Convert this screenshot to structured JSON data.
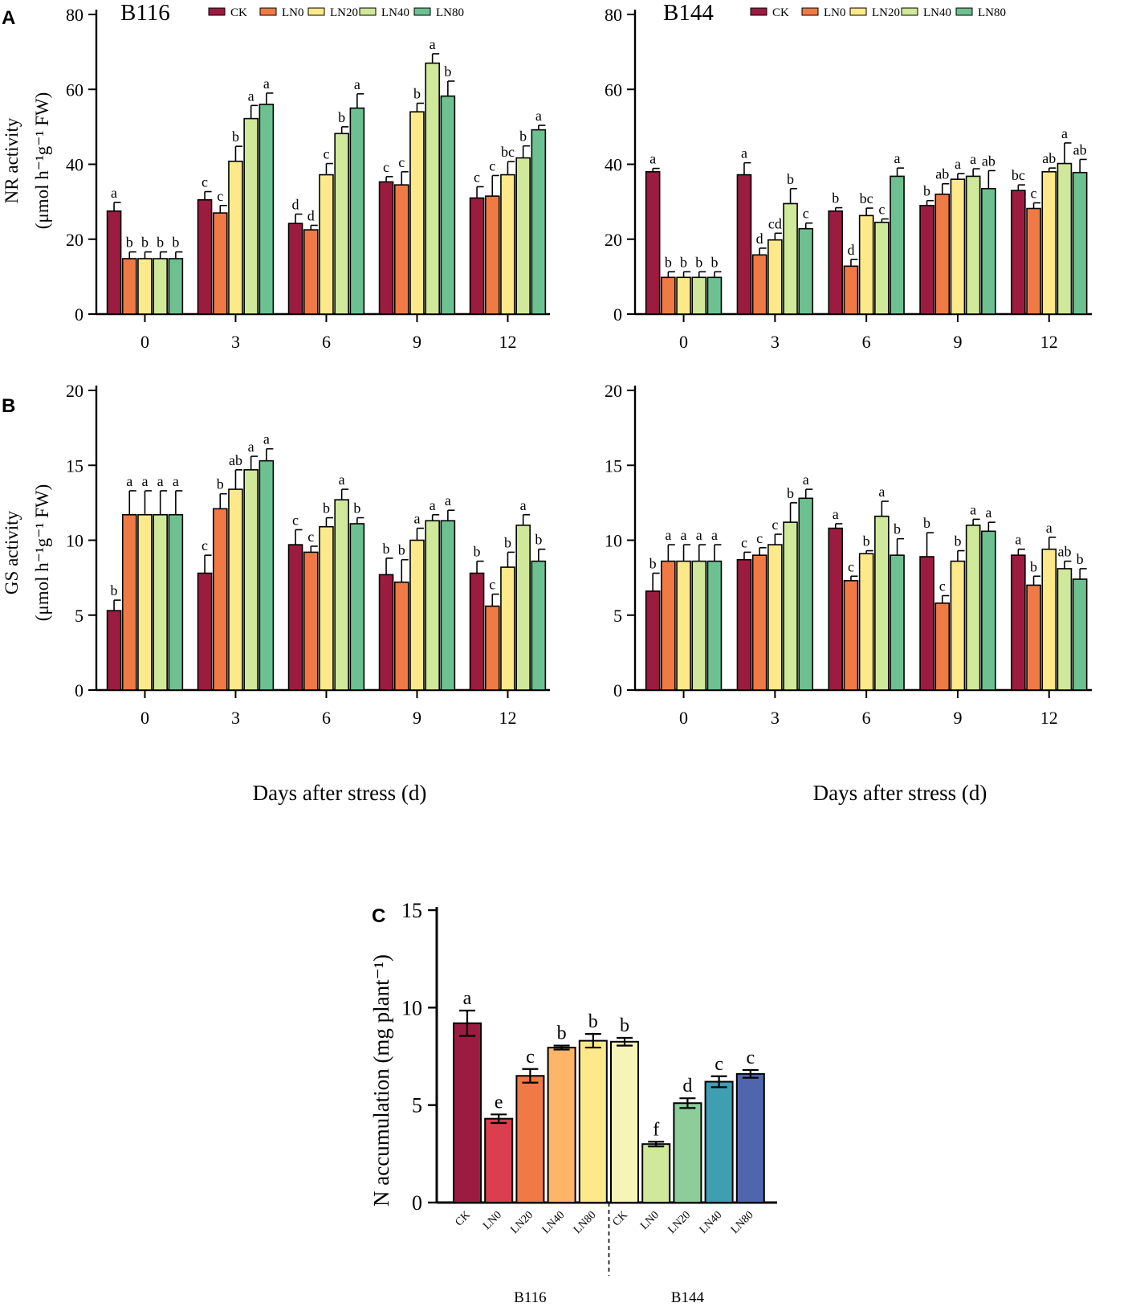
{
  "colors": {
    "CK": "#9b1c40",
    "LN0": "#f07a45",
    "LN20": "#fde98a",
    "LN40": "#cfe89a",
    "LN80": "#6dc190"
  },
  "panelA": {
    "letter": "A",
    "ylabel_line1": "NR activity",
    "ylabel_line2": "(μmol h⁻¹g⁻¹ FW)",
    "ylim": [
      0,
      80
    ],
    "yticks": [
      0,
      20,
      40,
      60,
      80
    ]
  },
  "panelB": {
    "letter": "B",
    "ylabel_line1": "GS activity",
    "ylabel_line2": "(μmol h⁻¹g⁻¹ FW)",
    "ylim": [
      0,
      20
    ],
    "yticks": [
      0,
      5,
      10,
      15,
      20
    ]
  },
  "xlabel": "Days after stress (d)",
  "panelC": {
    "letter": "C",
    "ylabel": "N accumulation (mg plant⁻¹)"
  },
  "chart_data": [
    {
      "id": "nr_b116",
      "type": "bar",
      "title": "B116",
      "xlabel": "",
      "ylabel": "NR activity (μmol h⁻¹g⁻¹ FW)",
      "ylim": [
        0,
        80
      ],
      "yticks": [
        0,
        20,
        40,
        60,
        80
      ],
      "categories": [
        "0",
        "3",
        "6",
        "9",
        "12"
      ],
      "legend": [
        "CK",
        "LN0",
        "LN20",
        "LN40",
        "LN80"
      ],
      "series": [
        {
          "name": "CK",
          "values": [
            27.5,
            30.5,
            24.2,
            35.3,
            31.0
          ],
          "errors": [
            2.3,
            2.2,
            2.5,
            1.4,
            3.0
          ],
          "letters": [
            "a",
            "c",
            "d",
            "c",
            "c"
          ]
        },
        {
          "name": "LN0",
          "values": [
            14.8,
            27.0,
            22.5,
            34.5,
            31.5
          ],
          "errors": [
            1.8,
            2.0,
            1.2,
            3.5,
            5.5
          ],
          "letters": [
            "b",
            "c",
            "d",
            "c",
            "c"
          ]
        },
        {
          "name": "LN20",
          "values": [
            14.8,
            40.8,
            37.2,
            54.0,
            37.2
          ],
          "errors": [
            1.8,
            4.0,
            3.0,
            2.3,
            3.5
          ],
          "letters": [
            "b",
            "b",
            "c",
            "b",
            "bc"
          ]
        },
        {
          "name": "LN40",
          "values": [
            14.8,
            52.2,
            48.2,
            67.0,
            41.7
          ],
          "errors": [
            1.8,
            3.5,
            1.8,
            2.5,
            3.2
          ],
          "letters": [
            "b",
            "a",
            "b",
            "a",
            "b"
          ]
        },
        {
          "name": "LN80",
          "values": [
            14.8,
            56.0,
            55.0,
            58.2,
            49.2
          ],
          "errors": [
            1.8,
            3.0,
            3.8,
            4.0,
            1.2
          ],
          "letters": [
            "b",
            "a",
            "a",
            "b",
            "a"
          ]
        }
      ]
    },
    {
      "id": "nr_b144",
      "type": "bar",
      "title": "B144",
      "xlabel": "",
      "ylabel": "",
      "ylim": [
        0,
        80
      ],
      "yticks": [
        0,
        20,
        40,
        60,
        80
      ],
      "categories": [
        "0",
        "3",
        "6",
        "9",
        "12"
      ],
      "legend": [
        "CK",
        "LN0",
        "LN20",
        "LN40",
        "LN80"
      ],
      "series": [
        {
          "name": "CK",
          "values": [
            38.0,
            37.2,
            27.5,
            29.0,
            33.0
          ],
          "errors": [
            0.9,
            3.2,
            0.9,
            1.3,
            1.5
          ],
          "letters": [
            "a",
            "a",
            "b",
            "b",
            "bc"
          ]
        },
        {
          "name": "LN0",
          "values": [
            9.8,
            15.8,
            12.8,
            32.0,
            28.2
          ],
          "errors": [
            1.5,
            1.8,
            1.8,
            2.8,
            1.5
          ],
          "letters": [
            "b",
            "d",
            "d",
            "ab",
            "c"
          ]
        },
        {
          "name": "LN20",
          "values": [
            9.8,
            19.8,
            26.3,
            36.0,
            38.0
          ],
          "errors": [
            1.5,
            1.8,
            2.0,
            1.5,
            1.0
          ],
          "letters": [
            "b",
            "cd",
            "bc",
            "a",
            "ab"
          ]
        },
        {
          "name": "LN40",
          "values": [
            9.8,
            29.5,
            24.5,
            36.8,
            40.2
          ],
          "errors": [
            1.5,
            4.0,
            0.9,
            2.0,
            5.5
          ],
          "letters": [
            "b",
            "b",
            "c",
            "a",
            "a"
          ]
        },
        {
          "name": "LN80",
          "values": [
            9.8,
            22.8,
            36.8,
            33.5,
            37.8
          ],
          "errors": [
            1.5,
            1.5,
            2.2,
            4.8,
            3.5
          ],
          "letters": [
            "b",
            "c",
            "a",
            "ab",
            "ab"
          ]
        }
      ]
    },
    {
      "id": "gs_b116",
      "type": "bar",
      "title": "",
      "xlabel": "Days after stress (d)",
      "ylabel": "GS activity (μmol h⁻¹g⁻¹ FW)",
      "ylim": [
        0,
        20
      ],
      "yticks": [
        0,
        5,
        10,
        15,
        20
      ],
      "categories": [
        "0",
        "3",
        "6",
        "9",
        "12"
      ],
      "series": [
        {
          "name": "CK",
          "values": [
            5.3,
            7.8,
            9.7,
            7.7,
            7.8
          ],
          "errors": [
            0.7,
            1.2,
            1.0,
            1.1,
            0.8
          ],
          "letters": [
            "b",
            "c",
            "c",
            "b",
            "b"
          ]
        },
        {
          "name": "LN0",
          "values": [
            11.7,
            12.1,
            9.2,
            7.2,
            5.6
          ],
          "errors": [
            1.6,
            1.0,
            0.4,
            1.5,
            0.8
          ],
          "letters": [
            "a",
            "b",
            "c",
            "b",
            "c"
          ]
        },
        {
          "name": "LN20",
          "values": [
            11.7,
            13.4,
            10.9,
            10.0,
            8.2
          ],
          "errors": [
            1.6,
            1.3,
            0.6,
            0.8,
            1.0
          ],
          "letters": [
            "a",
            "ab",
            "b",
            "a",
            "b"
          ]
        },
        {
          "name": "LN40",
          "values": [
            11.7,
            14.7,
            12.7,
            11.3,
            11.0
          ],
          "errors": [
            1.6,
            0.9,
            0.7,
            0.4,
            0.7
          ],
          "letters": [
            "a",
            "a",
            "a",
            "a",
            "a"
          ]
        },
        {
          "name": "LN80",
          "values": [
            11.7,
            15.3,
            11.1,
            11.3,
            8.6
          ],
          "errors": [
            1.6,
            0.8,
            0.4,
            0.7,
            0.8
          ],
          "letters": [
            "a",
            "a",
            "b",
            "a",
            "b"
          ]
        }
      ]
    },
    {
      "id": "gs_b144",
      "type": "bar",
      "title": "",
      "xlabel": "Days after stress (d)",
      "ylabel": "",
      "ylim": [
        0,
        20
      ],
      "yticks": [
        0,
        5,
        10,
        15,
        20
      ],
      "categories": [
        "0",
        "3",
        "6",
        "9",
        "12"
      ],
      "series": [
        {
          "name": "CK",
          "values": [
            6.6,
            8.7,
            10.8,
            8.9,
            9.0
          ],
          "errors": [
            1.2,
            0.5,
            0.3,
            1.6,
            0.4
          ],
          "letters": [
            "b",
            "c",
            "a",
            "b",
            "a"
          ]
        },
        {
          "name": "LN0",
          "values": [
            8.6,
            9.0,
            7.3,
            5.8,
            7.0
          ],
          "errors": [
            1.1,
            0.5,
            0.3,
            0.5,
            0.6
          ],
          "letters": [
            "a",
            "c",
            "c",
            "c",
            "b"
          ]
        },
        {
          "name": "LN20",
          "values": [
            8.6,
            9.7,
            9.1,
            8.6,
            9.4
          ],
          "errors": [
            1.1,
            0.7,
            0.2,
            0.7,
            0.8
          ],
          "letters": [
            "a",
            "c",
            "b",
            "b",
            "a"
          ]
        },
        {
          "name": "LN40",
          "values": [
            8.6,
            11.2,
            11.6,
            11.0,
            8.1
          ],
          "errors": [
            1.1,
            1.3,
            1.0,
            0.4,
            0.5
          ],
          "letters": [
            "a",
            "b",
            "a",
            "a",
            "ab"
          ]
        },
        {
          "name": "LN80",
          "values": [
            8.6,
            12.8,
            9.0,
            10.6,
            7.4
          ],
          "errors": [
            1.1,
            0.6,
            1.1,
            0.6,
            0.7
          ],
          "letters": [
            "a",
            "a",
            "b",
            "a",
            "b"
          ]
        }
      ]
    },
    {
      "id": "n_accumulation",
      "type": "bar",
      "title": "",
      "xlabel": "",
      "ylabel": "N accumulation (mg plant⁻¹)",
      "ylim": [
        0,
        15
      ],
      "yticks": [
        0,
        5,
        10,
        15
      ],
      "categories": [
        "CK",
        "LN0",
        "LN20",
        "LN40",
        "LN80",
        "CK",
        "LN0",
        "LN20",
        "LN40",
        "LN80"
      ],
      "groups": [
        {
          "name": "B116",
          "start": 0,
          "end": 4
        },
        {
          "name": "B144",
          "start": 5,
          "end": 9
        }
      ],
      "values": [
        9.2,
        4.3,
        6.5,
        7.95,
        8.3,
        8.25,
        3.0,
        5.1,
        6.2,
        6.6
      ],
      "errors": [
        0.65,
        0.22,
        0.35,
        0.1,
        0.35,
        0.2,
        0.12,
        0.25,
        0.28,
        0.2
      ],
      "letters": [
        "a",
        "e",
        "c",
        "b",
        "b",
        "b",
        "f",
        "d",
        "c",
        "c"
      ],
      "bar_colors": [
        "#9b1c40",
        "#db3e4e",
        "#f07a45",
        "#fdb567",
        "#fde98a",
        "#f6f5b7",
        "#cfe89a",
        "#8ccd9a",
        "#3f9fb2",
        "#4f66ad"
      ]
    }
  ]
}
